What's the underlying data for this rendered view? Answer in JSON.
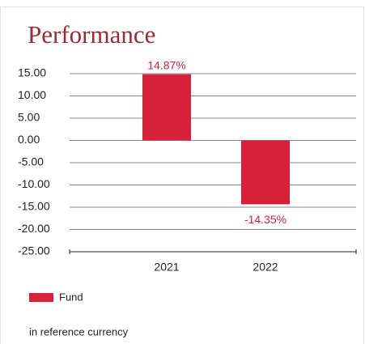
{
  "chart_data": {
    "type": "bar",
    "title": "Performance",
    "categories": [
      "2021",
      "2022"
    ],
    "series": [
      {
        "name": "Fund",
        "color": "#d7213b",
        "values": [
          14.87,
          -14.35
        ],
        "value_labels": [
          "14.87%",
          "-14.35%"
        ]
      }
    ],
    "ylim": [
      -25,
      15
    ],
    "yticks": [
      {
        "value": 15,
        "label": "15.00"
      },
      {
        "value": 10,
        "label": "10.00"
      },
      {
        "value": 5,
        "label": "5.00"
      },
      {
        "value": 0,
        "label": "0.00"
      },
      {
        "value": -5,
        "label": "-5.00"
      },
      {
        "value": -10,
        "label": "-10.00"
      },
      {
        "value": -15,
        "label": "-15.00"
      },
      {
        "value": -20,
        "label": "-20.00"
      },
      {
        "value": -25,
        "label": "-25.00"
      }
    ],
    "grid": true,
    "note": "in reference currency"
  }
}
